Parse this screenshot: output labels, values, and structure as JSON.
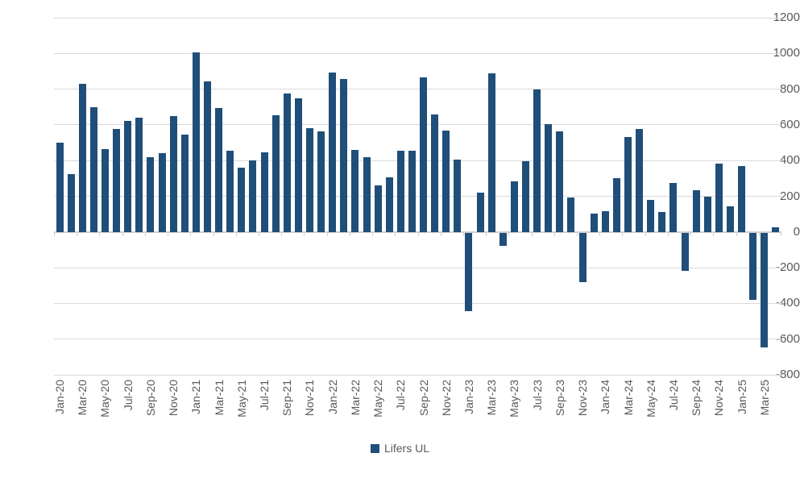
{
  "colors": {
    "bar": "#1F4E79",
    "gridline": "#D9D9D9",
    "axis_line": "#D0CECE",
    "tick_label": "#595959"
  },
  "y_axis": {
    "ticks": [
      1200,
      1000,
      800,
      600,
      400,
      200,
      0,
      -200,
      -400,
      -600,
      -800
    ],
    "min": -800,
    "max": 1200
  },
  "x_axis": {
    "label_every": 2,
    "tick_every": 2
  },
  "legend": {
    "label": "Lifers UL",
    "position": "bottom"
  },
  "chart_data": {
    "type": "bar",
    "title": "",
    "xlabel": "",
    "ylabel": "",
    "ylim": [
      -800,
      1200
    ],
    "grid": true,
    "legend_position": "bottom",
    "categories": [
      "Jan-20",
      "Feb-20",
      "Mar-20",
      "Apr-20",
      "May-20",
      "Jun-20",
      "Jul-20",
      "Aug-20",
      "Sep-20",
      "Oct-20",
      "Nov-20",
      "Dec-20",
      "Jan-21",
      "Feb-21",
      "Mar-21",
      "Apr-21",
      "May-21",
      "Jun-21",
      "Jul-21",
      "Aug-21",
      "Sep-21",
      "Oct-21",
      "Nov-21",
      "Dec-21",
      "Jan-22",
      "Feb-22",
      "Mar-22",
      "Apr-22",
      "May-22",
      "Jun-22",
      "Jul-22",
      "Aug-22",
      "Sep-22",
      "Oct-22",
      "Nov-22",
      "Dec-22",
      "Jan-23",
      "Feb-23",
      "Mar-23",
      "Apr-23",
      "May-23",
      "Jun-23",
      "Jul-23",
      "Aug-23",
      "Sep-23",
      "Oct-23",
      "Nov-23",
      "Dec-23",
      "Jan-24",
      "Feb-24",
      "Mar-24",
      "Apr-24",
      "May-24",
      "Jun-24",
      "Jul-24",
      "Aug-24",
      "Sep-24",
      "Oct-24",
      "Nov-24",
      "Dec-24",
      "Jan-25",
      "Feb-25",
      "Mar-25",
      "Apr-25"
    ],
    "series": [
      {
        "name": "Lifers UL",
        "values": [
          500,
          325,
          830,
          700,
          465,
          575,
          620,
          640,
          420,
          440,
          650,
          545,
          1005,
          845,
          695,
          455,
          360,
          400,
          445,
          655,
          775,
          750,
          580,
          565,
          895,
          855,
          460,
          420,
          260,
          305,
          455,
          455,
          865,
          660,
          570,
          405,
          -440,
          220,
          890,
          -75,
          285,
          395,
          800,
          605,
          565,
          195,
          -275,
          105,
          115,
          300,
          530,
          575,
          180,
          110,
          275,
          -215,
          235,
          200,
          385,
          145,
          370,
          -375,
          -640,
          25
        ]
      }
    ]
  }
}
